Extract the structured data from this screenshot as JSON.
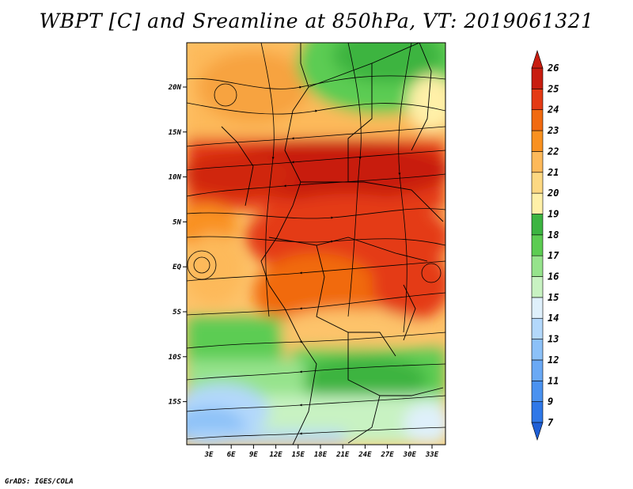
{
  "title": "WBPT [C] and Sreamline at 850hPa, VT: 2019061321",
  "credit": "GrADS: IGES/COLA",
  "variable": "WBPT",
  "units": "C",
  "level": "850hPa",
  "valid_time": "2019061321",
  "lat_labels": [
    "20N",
    "15N",
    "10N",
    "5N",
    "EQ",
    "5S",
    "10S",
    "15S"
  ],
  "lon_labels": [
    "3E",
    "6E",
    "9E",
    "12E",
    "15E",
    "18E",
    "21E",
    "24E",
    "27E",
    "30E",
    "33E"
  ],
  "colorbar": {
    "labels": [
      "7",
      "9",
      "11",
      "12",
      "13",
      "14",
      "15",
      "16",
      "17",
      "18",
      "19",
      "20",
      "21",
      "22",
      "23",
      "24",
      "25",
      "26"
    ],
    "colors": [
      "#1f5fd6",
      "#2f78e8",
      "#4a92f0",
      "#6aa9f5",
      "#8cc1f8",
      "#b3d8fb",
      "#dff0fb",
      "#c8f2c2",
      "#96e38c",
      "#5ccc52",
      "#3cb441",
      "#fff0a8",
      "#fdd882",
      "#fdb95a",
      "#f99120",
      "#f16a10",
      "#e43a14",
      "#c81d10"
    ]
  }
}
